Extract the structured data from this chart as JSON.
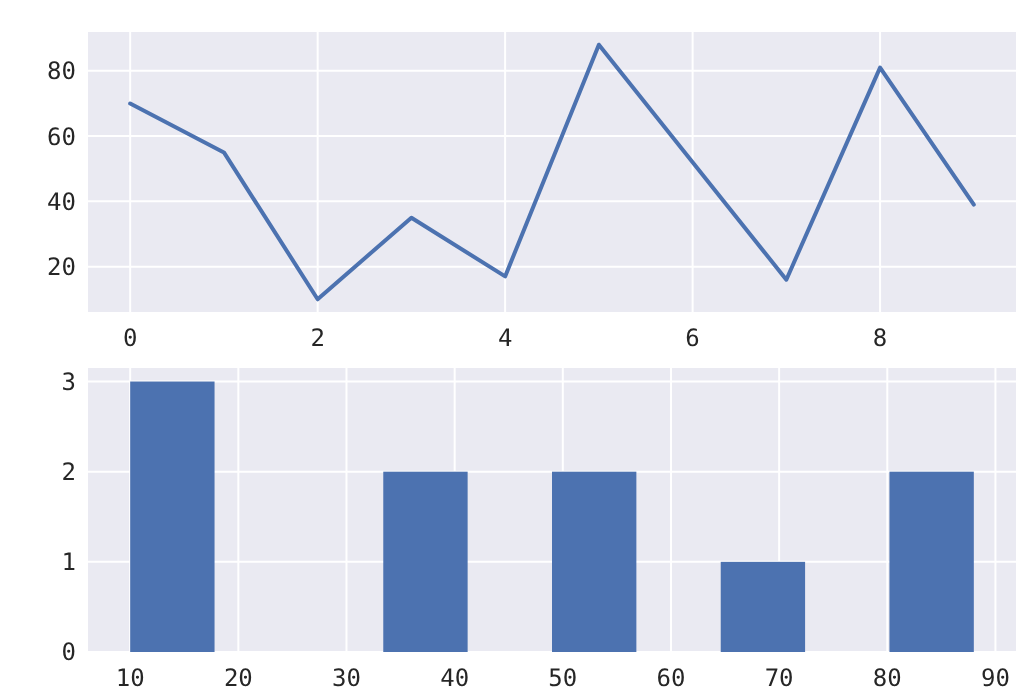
{
  "chart_data": [
    {
      "type": "line",
      "x": [
        0,
        1,
        2,
        3,
        4,
        5,
        6,
        7,
        8,
        9
      ],
      "values": [
        70,
        55,
        10,
        35,
        17,
        88,
        52,
        16,
        81,
        39
      ],
      "color": "#4c72b0",
      "xlim": [
        -0.45,
        9.45
      ],
      "ylim": [
        6.1,
        91.9
      ],
      "xticks": [
        0,
        2,
        4,
        6,
        8
      ],
      "yticks": [
        20,
        40,
        60,
        80
      ],
      "grid": true
    },
    {
      "type": "histogram",
      "bins": [
        10,
        17.8,
        25.6,
        33.4,
        41.2,
        49,
        56.8,
        64.6,
        72.4,
        80.2,
        88
      ],
      "values": [
        3,
        0,
        0,
        2,
        0,
        2,
        0,
        1,
        0,
        2
      ],
      "color": "#4c72b0",
      "xlim": [
        6.1,
        91.9
      ],
      "ylim": [
        0,
        3.15
      ],
      "xticks": [
        10,
        20,
        30,
        40,
        50,
        60,
        70,
        80,
        90
      ],
      "yticks": [
        0,
        1,
        2,
        3
      ],
      "grid": true
    }
  ]
}
